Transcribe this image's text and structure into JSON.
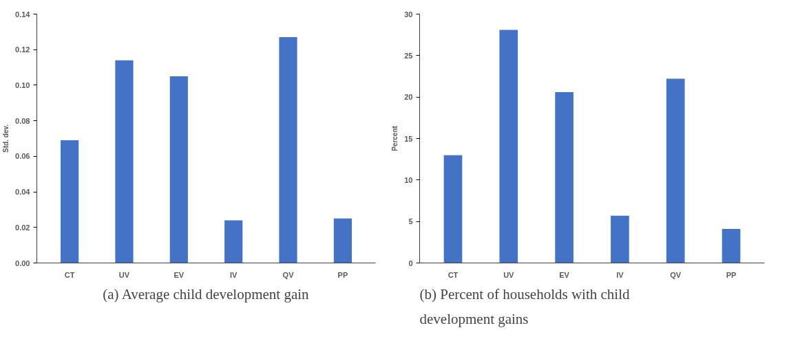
{
  "chart_data": [
    {
      "type": "bar",
      "title": "(a) Average child development gain",
      "ylabel": "Std. dev.",
      "categories": [
        "CT",
        "UV",
        "EV",
        "IV",
        "QV",
        "PP"
      ],
      "values": [
        0.069,
        0.114,
        0.105,
        0.024,
        0.127,
        0.025
      ],
      "color": "#4472c4",
      "ylim": [
        0,
        0.14
      ],
      "yticks": [
        {
          "value": 0,
          "label": "0.00"
        },
        {
          "value": 0.02,
          "label": "0.02"
        },
        {
          "value": 0.04,
          "label": "0.04"
        },
        {
          "value": 0.06,
          "label": "0.06"
        },
        {
          "value": 0.08,
          "label": "0.08"
        },
        {
          "value": 0.1,
          "label": "0.10"
        },
        {
          "value": 0.12,
          "label": "0.12"
        },
        {
          "value": 0.14,
          "label": "0.14"
        }
      ],
      "grid": false
    },
    {
      "type": "bar",
      "title": "(b) Percent of households with child development gains",
      "ylabel": "Percent",
      "categories": [
        "CT",
        "UV",
        "EV",
        "IV",
        "QV",
        "PP"
      ],
      "values": [
        13.0,
        28.1,
        20.6,
        5.7,
        22.2,
        4.1
      ],
      "color": "#4472c4",
      "ylim": [
        0,
        30
      ],
      "yticks": [
        0,
        5,
        10,
        15,
        20,
        25,
        30
      ],
      "grid": false
    }
  ]
}
